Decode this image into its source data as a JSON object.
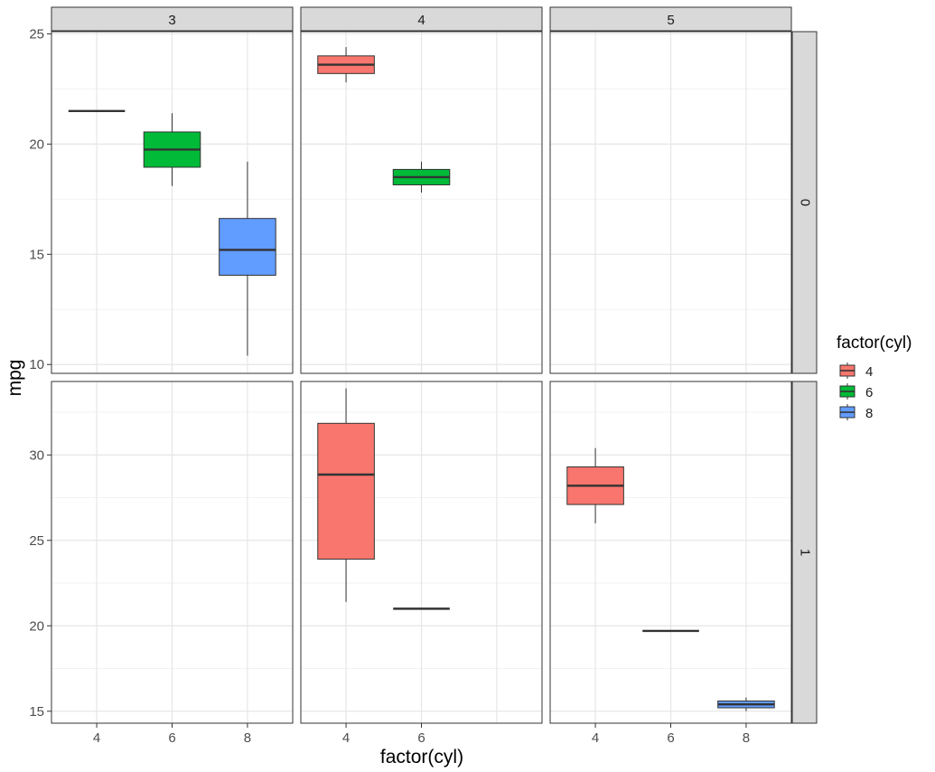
{
  "chart_data": {
    "type": "box",
    "xlabel": "factor(cyl)",
    "ylabel": "mpg",
    "x_categories": [
      "4",
      "6",
      "8"
    ],
    "facet_cols": [
      "3",
      "4",
      "5"
    ],
    "facet_rows": [
      "0",
      "1"
    ],
    "row_y_axes": [
      {
        "ylim": [
          9.6,
          25.1
        ],
        "ticks": [
          10,
          15,
          20,
          25
        ]
      },
      {
        "ylim": [
          14.3,
          34.3
        ],
        "ticks": [
          15,
          20,
          25,
          30
        ]
      }
    ],
    "grid": true,
    "legend": {
      "title": "factor(cyl)",
      "position": "right",
      "entries": [
        {
          "label": "4",
          "color": "#F8766D"
        },
        {
          "label": "6",
          "color": "#00BA38"
        },
        {
          "label": "8",
          "color": "#619CFF"
        }
      ]
    },
    "boxes": [
      {
        "row": "0",
        "col": "3",
        "cyl": "4",
        "min": 21.5,
        "q1": 21.5,
        "median": 21.5,
        "q3": 21.5,
        "max": 21.5
      },
      {
        "row": "0",
        "col": "3",
        "cyl": "6",
        "min": 18.1,
        "q1": 18.95,
        "median": 19.75,
        "q3": 20.55,
        "max": 21.4
      },
      {
        "row": "0",
        "col": "3",
        "cyl": "8",
        "min": 10.4,
        "q1": 14.05,
        "median": 15.2,
        "q3": 16.625,
        "max": 19.2
      },
      {
        "row": "0",
        "col": "4",
        "cyl": "4",
        "min": 22.8,
        "q1": 23.2,
        "median": 23.6,
        "q3": 24.0,
        "max": 24.4
      },
      {
        "row": "0",
        "col": "4",
        "cyl": "6",
        "min": 17.8,
        "q1": 18.15,
        "median": 18.5,
        "q3": 18.85,
        "max": 19.2
      },
      {
        "row": "1",
        "col": "4",
        "cyl": "4",
        "min": 21.4,
        "q1": 23.9,
        "median": 28.85,
        "q3": 31.85,
        "max": 33.9
      },
      {
        "row": "1",
        "col": "4",
        "cyl": "6",
        "min": 21.0,
        "q1": 21.0,
        "median": 21.0,
        "q3": 21.0,
        "max": 21.0
      },
      {
        "row": "1",
        "col": "5",
        "cyl": "4",
        "min": 26.0,
        "q1": 27.1,
        "median": 28.2,
        "q3": 29.3,
        "max": 30.4
      },
      {
        "row": "1",
        "col": "5",
        "cyl": "6",
        "min": 19.7,
        "q1": 19.7,
        "median": 19.7,
        "q3": 19.7,
        "max": 19.7
      },
      {
        "row": "1",
        "col": "5",
        "cyl": "8",
        "min": 15.0,
        "q1": 15.2,
        "median": 15.4,
        "q3": 15.6,
        "max": 15.8
      }
    ]
  }
}
